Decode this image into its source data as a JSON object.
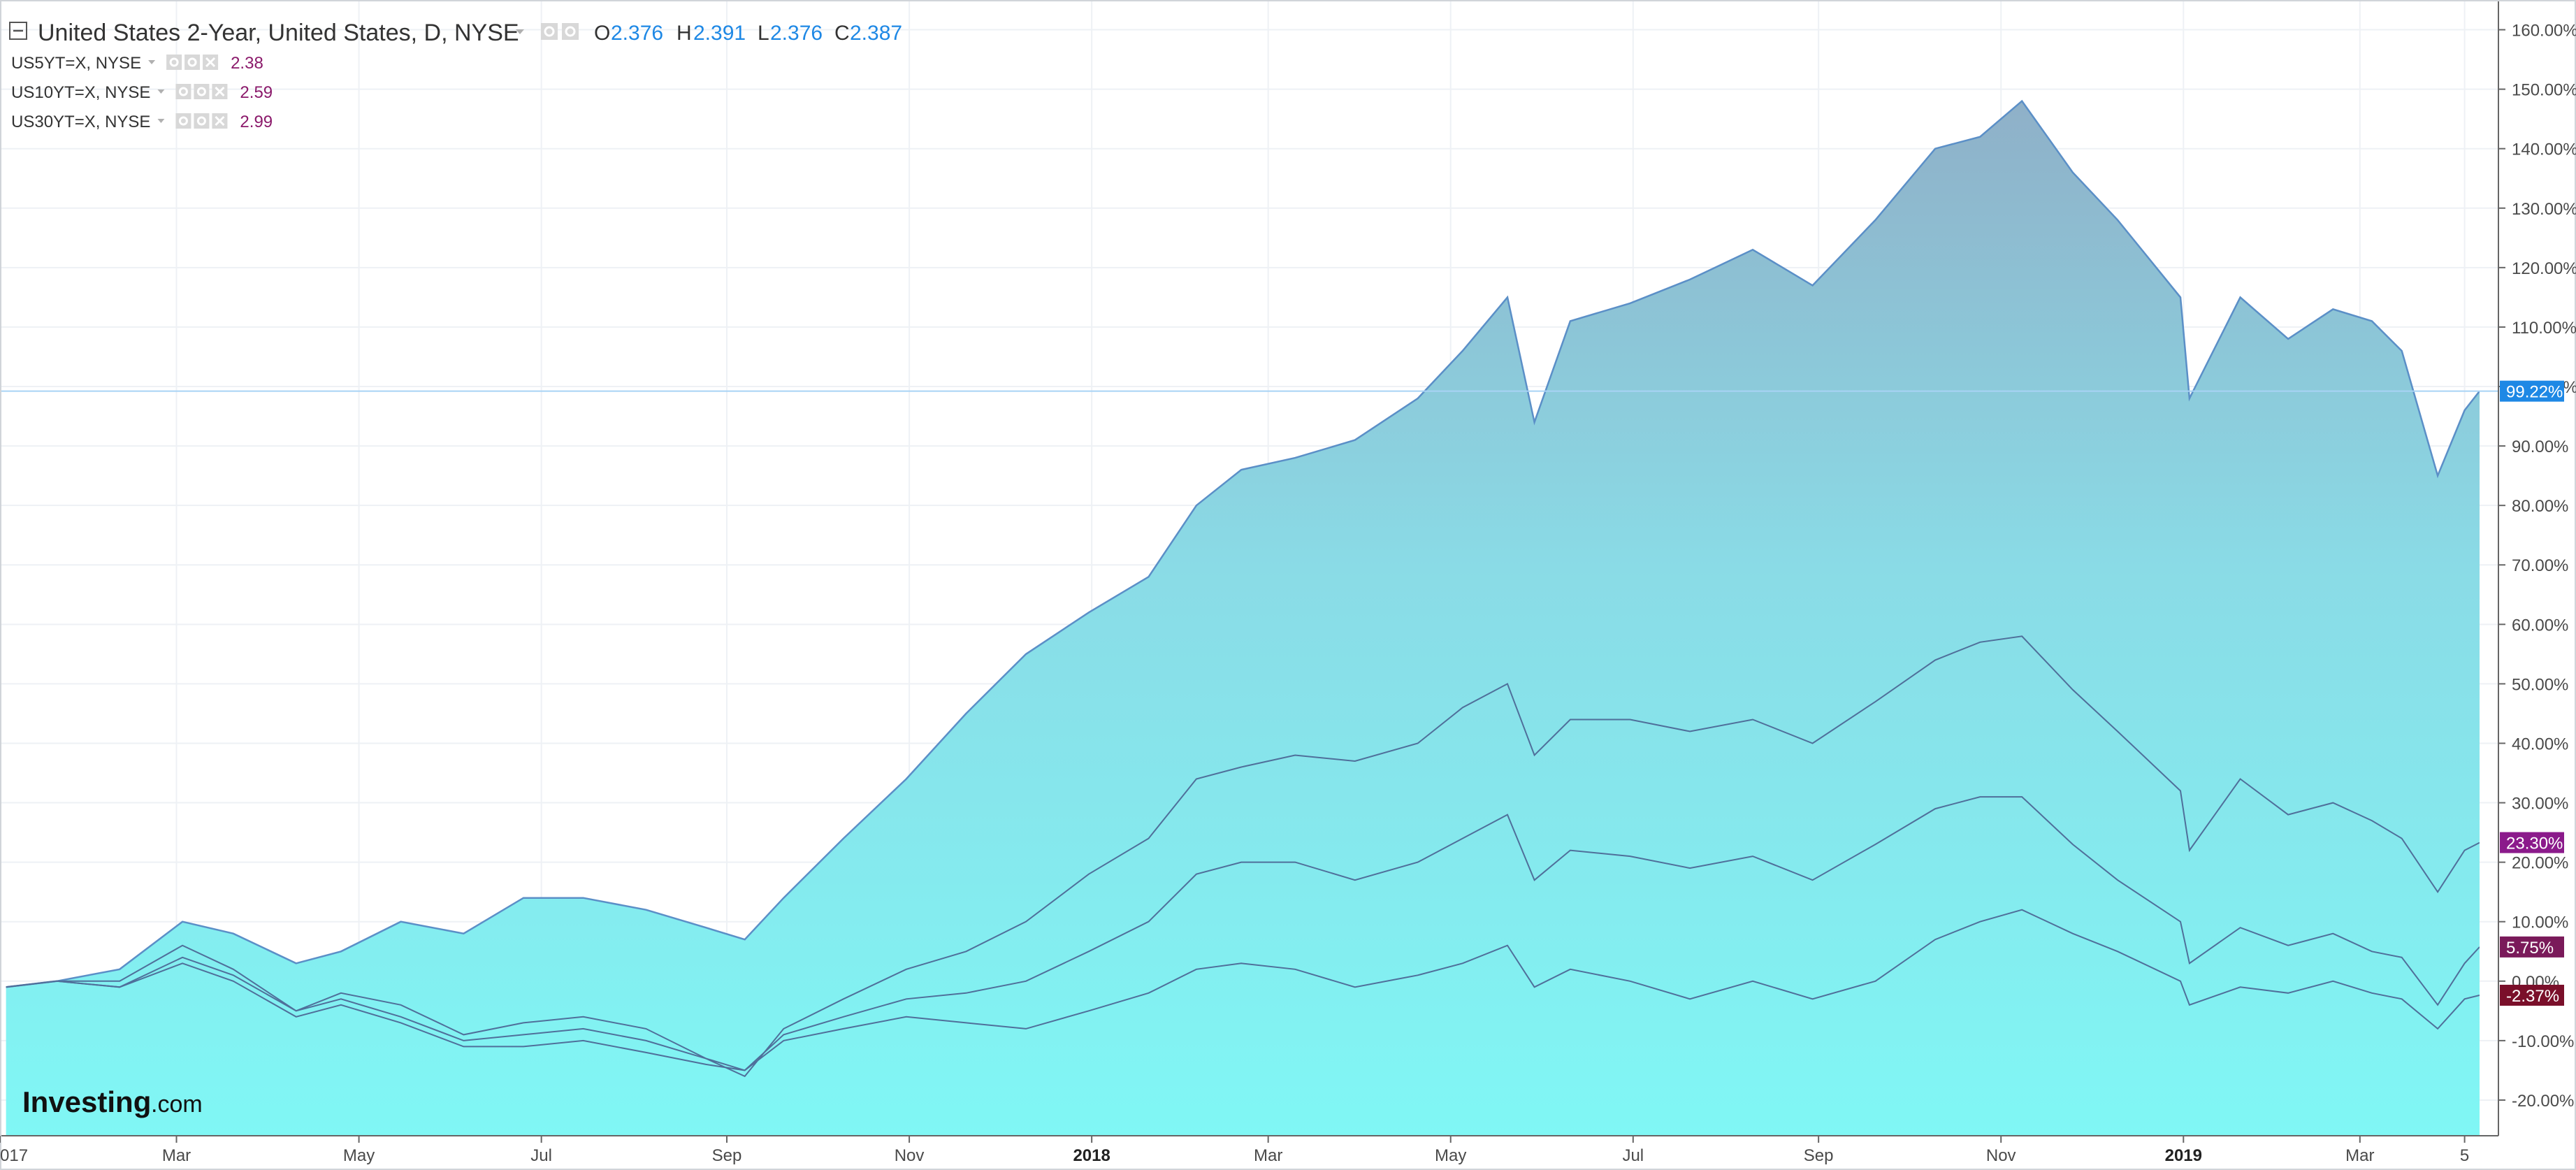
{
  "legend": {
    "main": {
      "title": "United States 2-Year, United States, D, NYSE",
      "open_key": "O",
      "open": "2.376",
      "high_key": "H",
      "high": "2.391",
      "low_key": "L",
      "low": "2.376",
      "close_key": "C",
      "close": "2.387"
    },
    "studies": [
      {
        "name": "US5YT=X, NYSE",
        "value": "2.38"
      },
      {
        "name": "US10YT=X, NYSE",
        "value": "2.59"
      },
      {
        "name": "US30YT=X, NYSE",
        "value": "2.99"
      }
    ]
  },
  "badges": {
    "us2y": "99.22%",
    "us5y": "23.30%",
    "us10y": "5.75%",
    "us30y": "-2.37%"
  },
  "logo": {
    "brand": "Investing",
    "suffix": ".com"
  },
  "colors": {
    "area_top": "#8fb0c8",
    "area_mid": "#8adbe6",
    "area_bottom": "#80f7f5",
    "series_line": "#5b8fc7",
    "comparison_line": "#4f6f9a",
    "price_line": "#a9d3f5",
    "badge_blue": "#1e88e5",
    "badge_purple": "#8b1a8b",
    "badge_dark_purple": "#7a1a5a",
    "badge_dark_red": "#7a0f2a"
  },
  "chart_data": {
    "type": "area",
    "ylim": [
      -26,
      165
    ],
    "y_ticks": [
      "160.00%",
      "150.00%",
      "140.00%",
      "130.00%",
      "120.00%",
      "110.00%",
      "100.00%",
      "90.00%",
      "80.00%",
      "70.00%",
      "60.00%",
      "50.00%",
      "40.00%",
      "30.00%",
      "20.00%",
      "10.00%",
      "0.00%",
      "-10.00%",
      "-20.00%"
    ],
    "y_tick_values": [
      160,
      150,
      140,
      130,
      120,
      110,
      100,
      90,
      80,
      70,
      60,
      50,
      40,
      30,
      20,
      10,
      0,
      -10,
      -20
    ],
    "x_ticks": [
      {
        "label": "017",
        "bold": false
      },
      {
        "label": "Mar",
        "bold": false
      },
      {
        "label": "May",
        "bold": false
      },
      {
        "label": "Jul",
        "bold": false
      },
      {
        "label": "Sep",
        "bold": false
      },
      {
        "label": "Nov",
        "bold": false
      },
      {
        "label": "2018",
        "bold": true
      },
      {
        "label": "Mar",
        "bold": false
      },
      {
        "label": "May",
        "bold": false
      },
      {
        "label": "Jul",
        "bold": false
      },
      {
        "label": "Sep",
        "bold": false
      },
      {
        "label": "Nov",
        "bold": false
      },
      {
        "label": "2019",
        "bold": true
      },
      {
        "label": "Mar",
        "bold": false
      },
      {
        "label": "5",
        "bold": false
      }
    ],
    "x_tick_dates": [
      "2017-01-01",
      "2017-03-01",
      "2017-05-01",
      "2017-07-01",
      "2017-09-01",
      "2017-11-01",
      "2018-01-01",
      "2018-03-01",
      "2018-05-01",
      "2018-07-01",
      "2018-09-01",
      "2018-11-01",
      "2019-01-01",
      "2019-03-01",
      "2019-04-05"
    ],
    "x_range": [
      "2017-01-01",
      "2019-04-10"
    ],
    "series": [
      {
        "name": "United States 2-Year",
        "style": "area",
        "x": [
          "2017-01-03",
          "2017-01-20",
          "2017-02-10",
          "2017-03-03",
          "2017-03-20",
          "2017-04-10",
          "2017-04-25",
          "2017-05-15",
          "2017-06-05",
          "2017-06-25",
          "2017-07-15",
          "2017-08-05",
          "2017-08-25",
          "2017-09-07",
          "2017-09-20",
          "2017-10-10",
          "2017-10-31",
          "2017-11-20",
          "2017-12-10",
          "2017-12-31",
          "2018-01-20",
          "2018-02-05",
          "2018-02-20",
          "2018-03-10",
          "2018-03-30",
          "2018-04-20",
          "2018-05-05",
          "2018-05-20",
          "2018-05-29",
          "2018-06-10",
          "2018-06-30",
          "2018-07-20",
          "2018-08-10",
          "2018-08-30",
          "2018-09-20",
          "2018-10-10",
          "2018-10-25",
          "2018-11-08",
          "2018-11-25",
          "2018-12-10",
          "2018-12-31",
          "2019-01-03",
          "2019-01-20",
          "2019-02-05",
          "2019-02-20",
          "2019-03-05",
          "2019-03-15",
          "2019-03-27",
          "2019-04-05",
          "2019-04-10"
        ],
        "values": [
          -1,
          0,
          2,
          10,
          8,
          3,
          5,
          10,
          8,
          14,
          14,
          12,
          9,
          7,
          14,
          24,
          34,
          45,
          55,
          62,
          68,
          80,
          86,
          88,
          91,
          98,
          106,
          115,
          94,
          111,
          114,
          118,
          123,
          117,
          128,
          140,
          142,
          148,
          136,
          128,
          115,
          98,
          115,
          108,
          113,
          111,
          106,
          85,
          96,
          99.22
        ]
      },
      {
        "name": "US5YT=X",
        "style": "line",
        "x": [
          "2017-01-03",
          "2017-01-20",
          "2017-02-10",
          "2017-03-03",
          "2017-03-20",
          "2017-04-10",
          "2017-04-25",
          "2017-05-15",
          "2017-06-05",
          "2017-06-25",
          "2017-07-15",
          "2017-08-05",
          "2017-08-25",
          "2017-09-07",
          "2017-09-20",
          "2017-10-10",
          "2017-10-31",
          "2017-11-20",
          "2017-12-10",
          "2017-12-31",
          "2018-01-20",
          "2018-02-05",
          "2018-02-20",
          "2018-03-10",
          "2018-03-30",
          "2018-04-20",
          "2018-05-05",
          "2018-05-20",
          "2018-05-29",
          "2018-06-10",
          "2018-06-30",
          "2018-07-20",
          "2018-08-10",
          "2018-08-30",
          "2018-09-20",
          "2018-10-10",
          "2018-10-25",
          "2018-11-08",
          "2018-11-25",
          "2018-12-10",
          "2018-12-31",
          "2019-01-03",
          "2019-01-20",
          "2019-02-05",
          "2019-02-20",
          "2019-03-05",
          "2019-03-15",
          "2019-03-27",
          "2019-04-05",
          "2019-04-10"
        ],
        "values": [
          -1,
          0,
          0,
          6,
          2,
          -5,
          -2,
          -4,
          -9,
          -7,
          -6,
          -8,
          -13,
          -16,
          -8,
          -3,
          2,
          5,
          10,
          18,
          24,
          34,
          36,
          38,
          37,
          40,
          46,
          50,
          38,
          44,
          44,
          42,
          44,
          40,
          47,
          54,
          57,
          58,
          49,
          42,
          32,
          22,
          34,
          28,
          30,
          27,
          24,
          15,
          22,
          23.3
        ]
      },
      {
        "name": "US10YT=X",
        "style": "line",
        "x": [
          "2017-01-03",
          "2017-01-20",
          "2017-02-10",
          "2017-03-03",
          "2017-03-20",
          "2017-04-10",
          "2017-04-25",
          "2017-05-15",
          "2017-06-05",
          "2017-06-25",
          "2017-07-15",
          "2017-08-05",
          "2017-08-25",
          "2017-09-07",
          "2017-09-20",
          "2017-10-10",
          "2017-10-31",
          "2017-11-20",
          "2017-12-10",
          "2017-12-31",
          "2018-01-20",
          "2018-02-05",
          "2018-02-20",
          "2018-03-10",
          "2018-03-30",
          "2018-04-20",
          "2018-05-05",
          "2018-05-20",
          "2018-05-29",
          "2018-06-10",
          "2018-06-30",
          "2018-07-20",
          "2018-08-10",
          "2018-08-30",
          "2018-09-20",
          "2018-10-10",
          "2018-10-25",
          "2018-11-08",
          "2018-11-25",
          "2018-12-10",
          "2018-12-31",
          "2019-01-03",
          "2019-01-20",
          "2019-02-05",
          "2019-02-20",
          "2019-03-05",
          "2019-03-15",
          "2019-03-27",
          "2019-04-05",
          "2019-04-10"
        ],
        "values": [
          -1,
          0,
          -1,
          4,
          1,
          -5,
          -3,
          -6,
          -10,
          -9,
          -8,
          -10,
          -13,
          -15,
          -9,
          -6,
          -3,
          -2,
          0,
          5,
          10,
          18,
          20,
          20,
          17,
          20,
          24,
          28,
          17,
          22,
          21,
          19,
          21,
          17,
          23,
          29,
          31,
          31,
          23,
          17,
          10,
          3,
          9,
          6,
          8,
          5,
          4,
          -4,
          3,
          5.75
        ]
      },
      {
        "name": "US30YT=X",
        "style": "line",
        "x": [
          "2017-01-03",
          "2017-01-20",
          "2017-02-10",
          "2017-03-03",
          "2017-03-20",
          "2017-04-10",
          "2017-04-25",
          "2017-05-15",
          "2017-06-05",
          "2017-06-25",
          "2017-07-15",
          "2017-08-05",
          "2017-08-25",
          "2017-09-07",
          "2017-09-20",
          "2017-10-10",
          "2017-10-31",
          "2017-11-20",
          "2017-12-10",
          "2017-12-31",
          "2018-01-20",
          "2018-02-05",
          "2018-02-20",
          "2018-03-10",
          "2018-03-30",
          "2018-04-20",
          "2018-05-05",
          "2018-05-20",
          "2018-05-29",
          "2018-06-10",
          "2018-06-30",
          "2018-07-20",
          "2018-08-10",
          "2018-08-30",
          "2018-09-20",
          "2018-10-10",
          "2018-10-25",
          "2018-11-08",
          "2018-11-25",
          "2018-12-10",
          "2018-12-31",
          "2019-01-03",
          "2019-01-20",
          "2019-02-05",
          "2019-02-20",
          "2019-03-05",
          "2019-03-15",
          "2019-03-27",
          "2019-04-05",
          "2019-04-10"
        ],
        "values": [
          -1,
          0,
          -1,
          3,
          0,
          -6,
          -4,
          -7,
          -11,
          -11,
          -10,
          -12,
          -14,
          -15,
          -10,
          -8,
          -6,
          -7,
          -8,
          -5,
          -2,
          2,
          3,
          2,
          -1,
          1,
          3,
          6,
          -1,
          2,
          0,
          -3,
          0,
          -3,
          0,
          7,
          10,
          12,
          8,
          5,
          0,
          -4,
          -1,
          -2,
          0,
          -2,
          -3,
          -8,
          -3,
          -2.37
        ]
      }
    ]
  }
}
